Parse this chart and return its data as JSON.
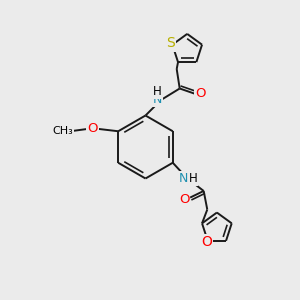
{
  "background_color": "#ebebeb",
  "atom_colors": {
    "C": "#000000",
    "H": "#000000",
    "N": "#1e90b0",
    "O": "#ff0000",
    "S": "#b8b000"
  },
  "bond_color": "#1a1a1a",
  "bond_width": 1.4,
  "font_size_atom": 8.5,
  "font_size_small": 7.5,
  "fig_bg": "#ebebeb"
}
